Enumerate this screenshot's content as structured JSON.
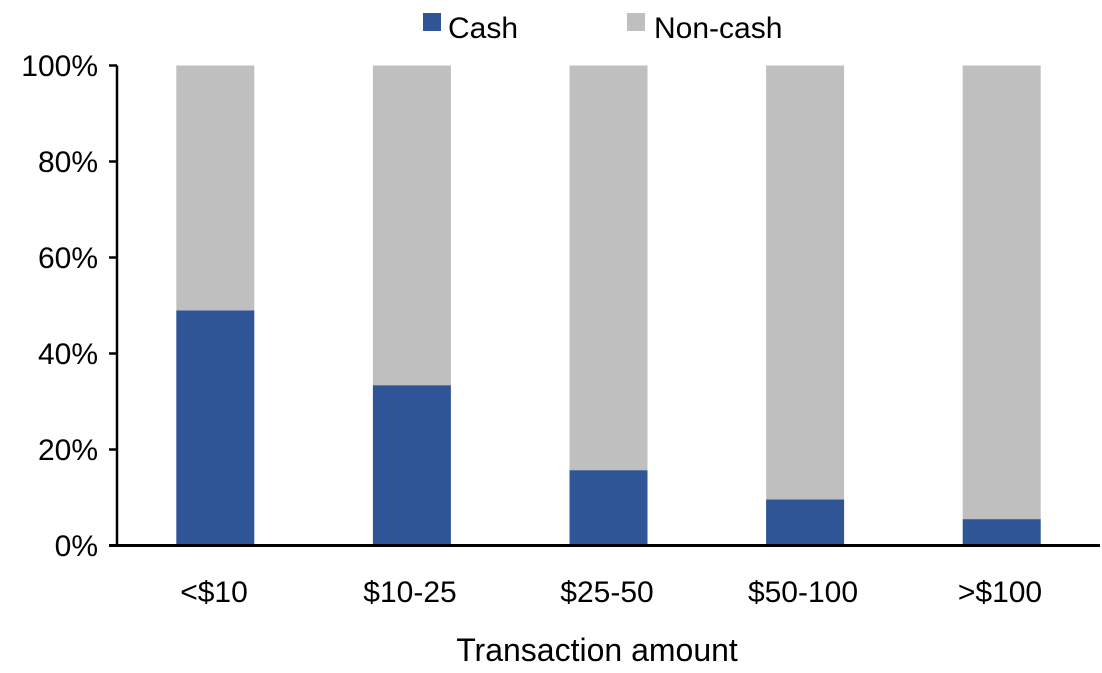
{
  "chart_data": {
    "type": "bar",
    "stacked": true,
    "title": "",
    "xlabel": "Transaction amount",
    "ylabel": "",
    "ylim": [
      0,
      100
    ],
    "yticks": [
      "0%",
      "20%",
      "40%",
      "60%",
      "80%",
      "100%"
    ],
    "categories": [
      "<$10",
      "$10-25",
      "$25-50",
      "$50-100",
      ">$100"
    ],
    "series": [
      {
        "name": "Cash",
        "color": "#2F5597",
        "values": [
          49,
          33.4,
          15.7,
          9.6,
          5.5
        ]
      },
      {
        "name": "Non-cash",
        "color": "#BFBFBF",
        "values": [
          51,
          66.6,
          84.3,
          90.4,
          94.5
        ]
      }
    ],
    "legend": "top",
    "grid": false
  }
}
